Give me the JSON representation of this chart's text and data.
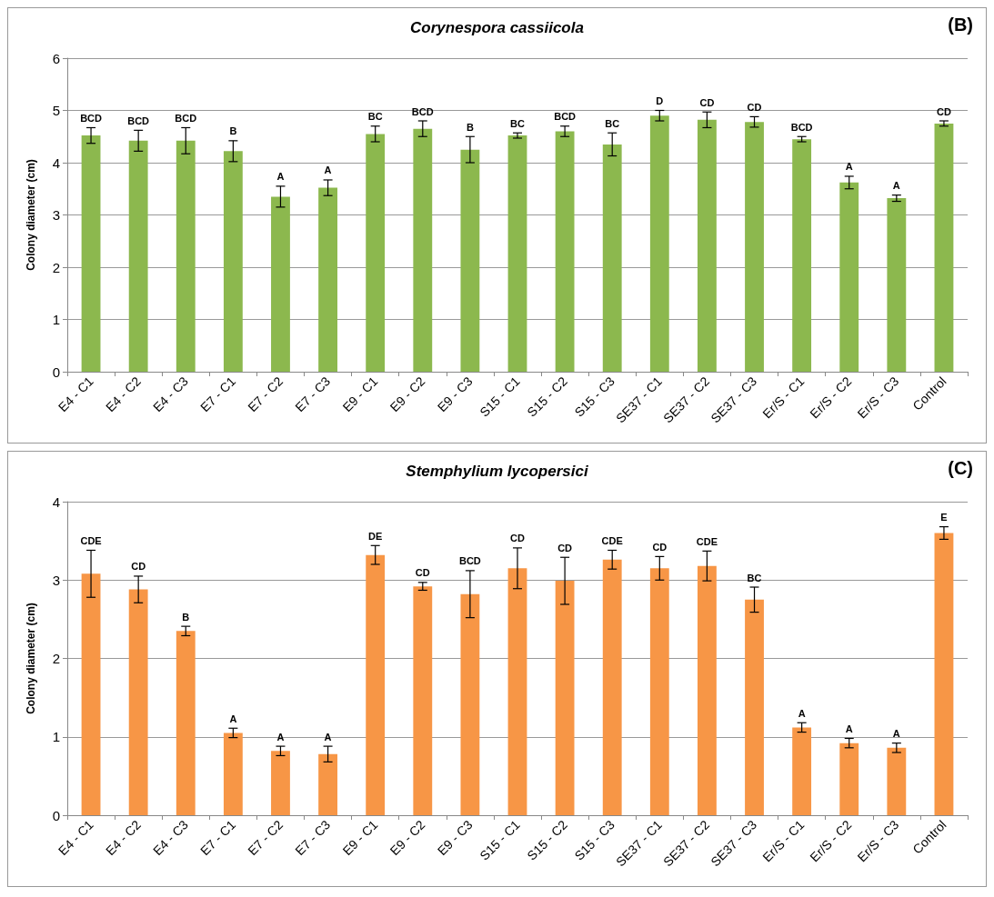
{
  "chart_data": [
    {
      "type": "bar",
      "title": "Corynespora cassiicola",
      "ylabel": "Colony diameter (cm)",
      "annotations": [
        "(B)"
      ],
      "categories": [
        "E4 - C1",
        "E4 - C2",
        "E4 - C3",
        "E7 - C1",
        "E7 - C2",
        "E7 - C3",
        "E9 - C1",
        "E9 - C2",
        "E9 - C3",
        "S15 - C1",
        "S15 - C2",
        "S15 - C3",
        "SE37 - C1",
        "SE37 - C2",
        "SE37 - C3",
        "Er/S - C1",
        "Er/S - C2",
        "Er/S - C3",
        "Control"
      ],
      "values": [
        4.52,
        4.42,
        4.42,
        4.22,
        3.35,
        3.52,
        4.55,
        4.65,
        4.25,
        4.52,
        4.6,
        4.35,
        4.9,
        4.82,
        4.78,
        4.45,
        3.62,
        3.32,
        4.75
      ],
      "errors": [
        0.15,
        0.2,
        0.25,
        0.2,
        0.2,
        0.15,
        0.15,
        0.15,
        0.25,
        0.05,
        0.1,
        0.22,
        0.1,
        0.15,
        0.1,
        0.05,
        0.12,
        0.06,
        0.05
      ],
      "value_labels": [
        "BCD",
        "BCD",
        "BCD",
        "B",
        "A",
        "A",
        "BC",
        "BCD",
        "B",
        "BC",
        "BCD",
        "BC",
        "D",
        "CD",
        "CD",
        "BCD",
        "A",
        "A",
        "CD"
      ],
      "color": "#8cb84e",
      "ylim": [
        0,
        6
      ],
      "yticks": [
        0,
        1,
        2,
        3,
        4,
        5,
        6
      ],
      "grid": "y"
    },
    {
      "type": "bar",
      "title": "Stemphylium lycopersici",
      "ylabel": "Colony diameter (cm)",
      "annotations": [
        "(C)"
      ],
      "categories": [
        "E4 - C1",
        "E4 - C2",
        "E4 - C3",
        "E7 - C1",
        "E7 - C2",
        "E7 - C3",
        "E9 - C1",
        "E9 - C2",
        "E9 - C3",
        "S15 - C1",
        "S15 - C2",
        "S15 - C3",
        "SE37 - C1",
        "SE37 - C2",
        "SE37 - C3",
        "Er/S - C1",
        "Er/S - C2",
        "Er/S - C3",
        "Control"
      ],
      "values": [
        3.08,
        2.88,
        2.35,
        1.05,
        0.82,
        0.78,
        3.32,
        2.92,
        2.82,
        3.15,
        2.99,
        3.26,
        3.15,
        3.18,
        2.75,
        1.12,
        0.92,
        0.86,
        3.6
      ],
      "errors": [
        0.3,
        0.17,
        0.06,
        0.06,
        0.06,
        0.1,
        0.12,
        0.05,
        0.3,
        0.26,
        0.3,
        0.12,
        0.15,
        0.19,
        0.16,
        0.06,
        0.06,
        0.06,
        0.08
      ],
      "value_labels": [
        "CDE",
        "CD",
        "B",
        "A",
        "A",
        "A",
        "DE",
        "CD",
        "BCD",
        "CD",
        "CD",
        "CDE",
        "CD",
        "CDE",
        "BC",
        "A",
        "A",
        "A",
        "E"
      ],
      "color": "#f79646",
      "ylim": [
        0,
        4
      ],
      "yticks": [
        0,
        1,
        2,
        3,
        4
      ],
      "grid": "y"
    }
  ]
}
